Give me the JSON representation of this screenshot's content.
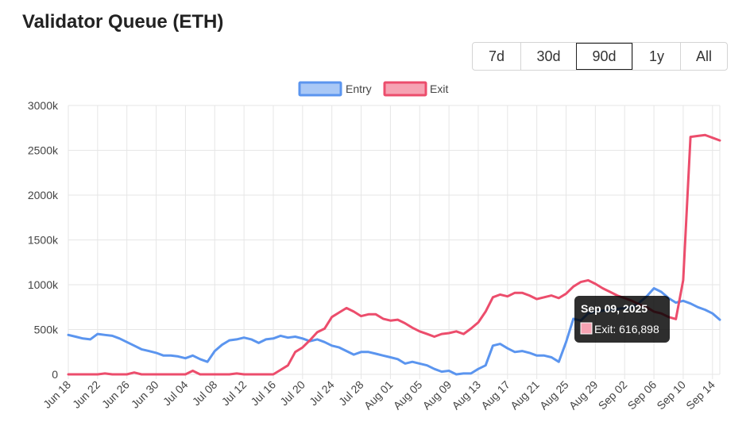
{
  "page": {
    "title": "Validator Queue (ETH)"
  },
  "range_buttons": [
    {
      "label": "7d",
      "active": false
    },
    {
      "label": "30d",
      "active": false
    },
    {
      "label": "90d",
      "active": true
    },
    {
      "label": "1y",
      "active": false
    },
    {
      "label": "All",
      "active": false
    }
  ],
  "tooltip": {
    "title": "Sep 09, 2025",
    "label": "Exit: 616,898"
  },
  "colors": {
    "entry": "#5b95ef",
    "entry_fill": "#a9c8f6",
    "exit": "#ec4d6c",
    "exit_fill": "#f6a3b3",
    "grid": "#e6e6e6"
  },
  "chart_data": {
    "type": "line",
    "title": "",
    "xlabel": "",
    "ylabel": "",
    "ylim": [
      0,
      3000
    ],
    "y_ticks": [
      "0",
      "500k",
      "1000k",
      "1500k",
      "2000k",
      "2500k",
      "3000k"
    ],
    "x_ticks": [
      "Jun 18",
      "Jun 22",
      "Jun 26",
      "Jun 30",
      "Jul 04",
      "Jul 08",
      "Jul 12",
      "Jul 16",
      "Jul 20",
      "Jul 24",
      "Jul 28",
      "Aug 01",
      "Aug 05",
      "Aug 09",
      "Aug 13",
      "Aug 17",
      "Aug 21",
      "Aug 25",
      "Aug 29",
      "Sep 02",
      "Sep 06",
      "Sep 10",
      "Sep 14"
    ],
    "x": [
      "Jun 18",
      "Jun 19",
      "Jun 20",
      "Jun 21",
      "Jun 22",
      "Jun 23",
      "Jun 24",
      "Jun 25",
      "Jun 26",
      "Jun 27",
      "Jun 28",
      "Jun 29",
      "Jun 30",
      "Jul 01",
      "Jul 02",
      "Jul 03",
      "Jul 04",
      "Jul 05",
      "Jul 06",
      "Jul 07",
      "Jul 08",
      "Jul 09",
      "Jul 10",
      "Jul 11",
      "Jul 12",
      "Jul 13",
      "Jul 14",
      "Jul 15",
      "Jul 16",
      "Jul 17",
      "Jul 18",
      "Jul 19",
      "Jul 20",
      "Jul 21",
      "Jul 22",
      "Jul 23",
      "Jul 24",
      "Jul 25",
      "Jul 26",
      "Jul 27",
      "Jul 28",
      "Jul 29",
      "Jul 30",
      "Jul 31",
      "Aug 01",
      "Aug 02",
      "Aug 03",
      "Aug 04",
      "Aug 05",
      "Aug 06",
      "Aug 07",
      "Aug 08",
      "Aug 09",
      "Aug 10",
      "Aug 11",
      "Aug 12",
      "Aug 13",
      "Aug 14",
      "Aug 15",
      "Aug 16",
      "Aug 17",
      "Aug 18",
      "Aug 19",
      "Aug 20",
      "Aug 21",
      "Aug 22",
      "Aug 23",
      "Aug 24",
      "Aug 25",
      "Aug 26",
      "Aug 27",
      "Aug 28",
      "Aug 29",
      "Aug 30",
      "Aug 31",
      "Sep 01",
      "Sep 02",
      "Sep 03",
      "Sep 04",
      "Sep 05",
      "Sep 06",
      "Sep 07",
      "Sep 08",
      "Sep 09",
      "Sep 10",
      "Sep 11",
      "Sep 12",
      "Sep 13",
      "Sep 14",
      "Sep 15"
    ],
    "legend": {
      "position": "top"
    },
    "grid": true,
    "series": [
      {
        "name": "Entry",
        "values": [
          440,
          420,
          400,
          390,
          450,
          440,
          430,
          400,
          360,
          320,
          280,
          260,
          240,
          210,
          210,
          200,
          180,
          210,
          170,
          140,
          260,
          330,
          380,
          390,
          410,
          390,
          350,
          390,
          400,
          430,
          410,
          420,
          400,
          370,
          390,
          360,
          320,
          300,
          260,
          220,
          250,
          250,
          230,
          210,
          190,
          170,
          120,
          140,
          120,
          100,
          60,
          30,
          40,
          0,
          10,
          10,
          60,
          100,
          320,
          340,
          290,
          250,
          260,
          240,
          210,
          210,
          190,
          140,
          360,
          620,
          600,
          680,
          700,
          710,
          720,
          730,
          740,
          750,
          800,
          870,
          960,
          920,
          850,
          800,
          820,
          790,
          750,
          720,
          680,
          610
        ]
      },
      {
        "name": "Exit",
        "values": [
          0,
          0,
          0,
          0,
          0,
          10,
          0,
          0,
          0,
          20,
          0,
          0,
          0,
          0,
          0,
          0,
          0,
          40,
          0,
          0,
          0,
          0,
          0,
          10,
          0,
          0,
          0,
          0,
          0,
          50,
          100,
          250,
          300,
          380,
          470,
          510,
          640,
          690,
          740,
          700,
          650,
          670,
          670,
          620,
          600,
          610,
          570,
          520,
          480,
          450,
          420,
          450,
          460,
          480,
          450,
          510,
          580,
          700,
          860,
          890,
          870,
          910,
          910,
          880,
          840,
          860,
          880,
          850,
          900,
          980,
          1030,
          1050,
          1010,
          960,
          920,
          880,
          850,
          820,
          780,
          750,
          700,
          680,
          640,
          617,
          1050,
          2650,
          2660,
          2670,
          2640,
          2610
        ]
      }
    ]
  }
}
